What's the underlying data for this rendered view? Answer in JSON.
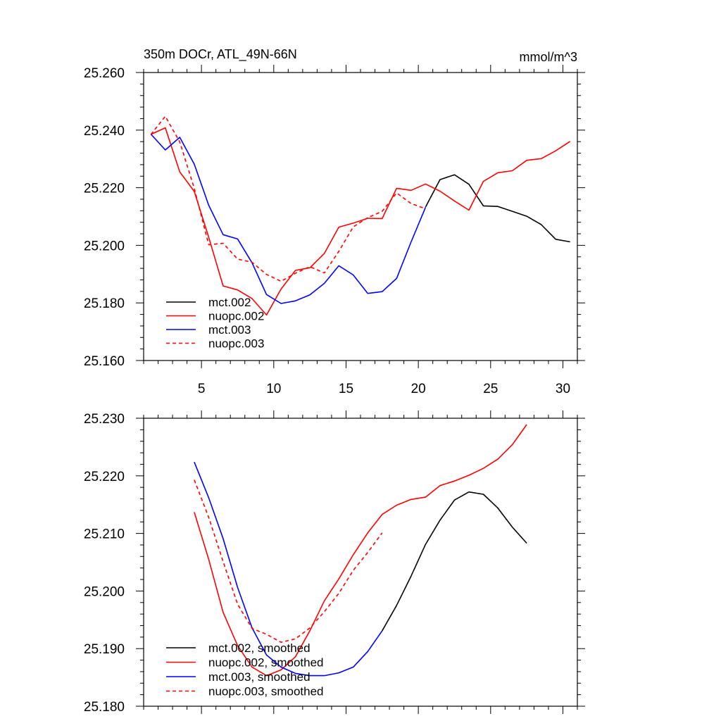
{
  "chart_data": [
    {
      "type": "line",
      "title": "350m DOCr, ATL_49N-66N",
      "units": "mmol/m^3",
      "xlim": [
        1,
        31
      ],
      "ylim": [
        25.16,
        25.26
      ],
      "xticks": [
        5,
        10,
        15,
        20,
        25,
        30
      ],
      "yticks": [
        "25.160",
        "25.180",
        "25.200",
        "25.220",
        "25.240",
        "25.260"
      ],
      "legend_position": "bottom-left",
      "series": [
        {
          "name": "mct.002",
          "color": "#000000",
          "dash": "solid",
          "x": [
            20.5,
            21.5,
            22.5,
            23.5,
            24.5,
            25.5,
            26.5,
            27.5,
            28.5,
            29.5,
            30.5
          ],
          "y": [
            25.2133,
            25.2228,
            25.2245,
            25.2212,
            25.2137,
            25.2135,
            25.2118,
            25.2101,
            25.2072,
            25.2021,
            25.2012
          ]
        },
        {
          "name": "nuopc.002",
          "color": "#ff0000",
          "dash": "solid",
          "x": [
            1.5,
            2.5,
            3.5,
            4.5,
            5.5,
            6.5,
            7.5,
            8.5,
            9.5,
            10.5,
            11.5,
            12.5,
            13.5,
            14.5,
            15.5,
            16.5,
            17.5,
            18.5,
            19.5,
            20.5,
            21.5,
            22.5,
            23.5,
            24.5,
            25.5,
            26.5,
            27.5,
            28.5,
            29.5,
            30.5
          ],
          "y": [
            25.2385,
            25.2408,
            25.2255,
            25.2187,
            25.2028,
            25.1859,
            25.1845,
            25.1815,
            25.1758,
            25.1848,
            25.1913,
            25.1922,
            25.1972,
            25.2063,
            25.2077,
            25.2094,
            25.2093,
            25.2198,
            25.2191,
            25.2213,
            25.2188,
            25.2154,
            25.2122,
            25.2222,
            25.2252,
            25.2259,
            25.2295,
            25.2301,
            25.2328,
            25.2361
          ]
        },
        {
          "name": "mct.003",
          "color": "#0000ff",
          "dash": "solid",
          "x": [
            1.5,
            2.5,
            3.5,
            4.5,
            5.5,
            6.5,
            7.5,
            8.5,
            9.5,
            10.5,
            11.5,
            12.5,
            13.5,
            14.5,
            15.5,
            16.5,
            17.5,
            18.5,
            19.5,
            20.5
          ],
          "y": [
            25.2386,
            25.2331,
            25.2375,
            25.2282,
            25.2139,
            25.2037,
            25.2022,
            25.1939,
            25.1829,
            25.1798,
            25.1807,
            25.1828,
            25.1868,
            25.1929,
            25.1897,
            25.1833,
            25.1839,
            25.1885,
            25.2012,
            25.2132
          ]
        },
        {
          "name": "nuopc.003",
          "color": "#ff0000",
          "dash": "dashed",
          "x": [
            1.5,
            2.5,
            3.5,
            4.5,
            5.5,
            6.5,
            7.5,
            8.5,
            9.5,
            10.5,
            11.5,
            12.5,
            13.5,
            14.5,
            15.5,
            16.5,
            17.5,
            18.5,
            19.5,
            20.5
          ],
          "y": [
            25.2385,
            25.2448,
            25.2359,
            25.2198,
            25.2002,
            25.2007,
            25.1952,
            25.1941,
            25.1899,
            25.1875,
            25.1903,
            25.1926,
            25.1904,
            25.1979,
            25.2064,
            25.2096,
            25.2118,
            25.2182,
            25.2145,
            25.2127
          ]
        }
      ]
    },
    {
      "type": "line",
      "title": "",
      "units": "",
      "xlim": [
        1,
        31
      ],
      "ylim": [
        25.18,
        25.23
      ],
      "xticks": [],
      "yticks": [
        "25.180",
        "25.190",
        "25.200",
        "25.210",
        "25.220",
        "25.230"
      ],
      "legend_position": "bottom-left",
      "series": [
        {
          "name": "mct.002, smoothed",
          "color": "#000000",
          "dash": "solid",
          "x": [
            17.5,
            18.5,
            19.5,
            20.5,
            21.5,
            22.5,
            23.5,
            24.5,
            25.5,
            26.5,
            27.5
          ],
          "y": [
            25.1931,
            25.1975,
            25.2026,
            25.2081,
            25.2123,
            25.2158,
            25.2172,
            25.2168,
            25.2144,
            25.2111,
            25.2083
          ]
        },
        {
          "name": "nuopc.002, smoothed",
          "color": "#ff0000",
          "dash": "solid",
          "x": [
            4.5,
            5.5,
            6.5,
            7.5,
            8.5,
            9.5,
            10.5,
            11.5,
            12.5,
            13.5,
            14.5,
            15.5,
            16.5,
            17.5,
            18.5,
            19.5,
            20.5,
            21.5,
            22.5,
            23.5,
            24.5,
            25.5,
            26.5,
            27.5
          ],
          "y": [
            25.2137,
            25.2055,
            25.1963,
            25.1905,
            25.1868,
            25.1853,
            25.1863,
            25.1886,
            25.1931,
            25.1983,
            25.2021,
            25.2063,
            25.2101,
            25.2133,
            25.2149,
            25.2159,
            25.2163,
            25.2183,
            25.2191,
            25.2201,
            25.2213,
            25.2229,
            25.2254,
            25.2289
          ]
        },
        {
          "name": "mct.003, smoothed",
          "color": "#0000ff",
          "dash": "solid",
          "x": [
            4.5,
            5.5,
            6.5,
            7.5,
            8.5,
            9.5,
            10.5,
            11.5,
            12.5,
            13.5,
            14.5,
            15.5,
            16.5,
            17.5
          ],
          "y": [
            25.2224,
            25.2162,
            25.2091,
            25.2006,
            25.1936,
            25.1889,
            25.1868,
            25.1857,
            25.1853,
            25.1853,
            25.1858,
            25.1868,
            25.1895,
            25.1931
          ]
        },
        {
          "name": "nuopc.003, smoothed",
          "color": "#ff0000",
          "dash": "dashed",
          "x": [
            4.5,
            5.5,
            6.5,
            7.5,
            8.5,
            9.5,
            10.5,
            11.5,
            12.5,
            13.5,
            14.5,
            15.5,
            16.5,
            17.5
          ],
          "y": [
            25.2193,
            25.2128,
            25.2051,
            25.1977,
            25.1935,
            25.1925,
            25.1911,
            25.1917,
            25.1936,
            25.1964,
            25.1996,
            25.2036,
            25.2067,
            25.2101
          ]
        }
      ]
    }
  ]
}
